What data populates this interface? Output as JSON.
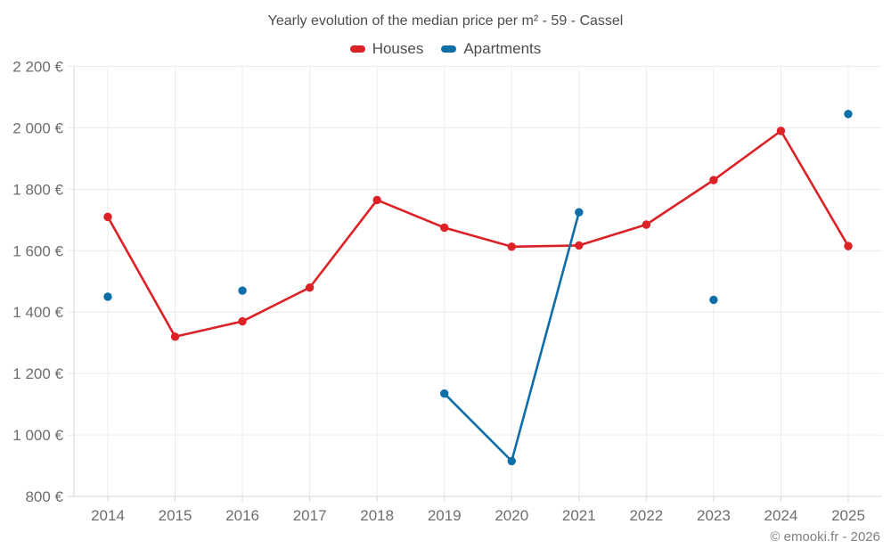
{
  "page": {
    "title": "Yearly evolution of the median price per m² - 59 - Cassel",
    "footer": "© emooki.fr - 2026"
  },
  "legend": {
    "items": [
      {
        "label": "Houses",
        "color": "#dc2127"
      },
      {
        "label": "Apartments",
        "color": "#0e6ea8"
      }
    ]
  },
  "chart_data": {
    "type": "line",
    "title": "Yearly evolution of the median price per m² - 59 - Cassel",
    "categories": [
      "2014",
      "2015",
      "2016",
      "2017",
      "2018",
      "2019",
      "2020",
      "2021",
      "2022",
      "2023",
      "2024",
      "2025"
    ],
    "series": [
      {
        "name": "Houses",
        "color": "#dc2127",
        "values": [
          1710,
          1320,
          1370,
          1480,
          1765,
          1675,
          1613,
          1617,
          1685,
          1830,
          1990,
          1615
        ]
      },
      {
        "name": "Apartments",
        "color": "#0e6ea8",
        "values": [
          1450,
          null,
          1470,
          null,
          null,
          1135,
          915,
          1725,
          null,
          1440,
          null,
          2045
        ]
      }
    ],
    "ylabel": "",
    "xlabel": "",
    "ylim": [
      800,
      2200
    ],
    "y_ticks": [
      {
        "value": 800,
        "label": "800 €"
      },
      {
        "value": 1000,
        "label": "1 000 €"
      },
      {
        "value": 1200,
        "label": "1 200 €"
      },
      {
        "value": 1400,
        "label": "1 400 €"
      },
      {
        "value": 1600,
        "label": "1 600 €"
      },
      {
        "value": 1800,
        "label": "1 800 €"
      },
      {
        "value": 2000,
        "label": "2 000 €"
      },
      {
        "value": 2200,
        "label": "2 200 €"
      }
    ],
    "grid": true,
    "legend_position": "top",
    "colors": {
      "grid": "#ececec",
      "axis": "#d6d6d6",
      "tick_text": "#6e6e6e"
    }
  }
}
